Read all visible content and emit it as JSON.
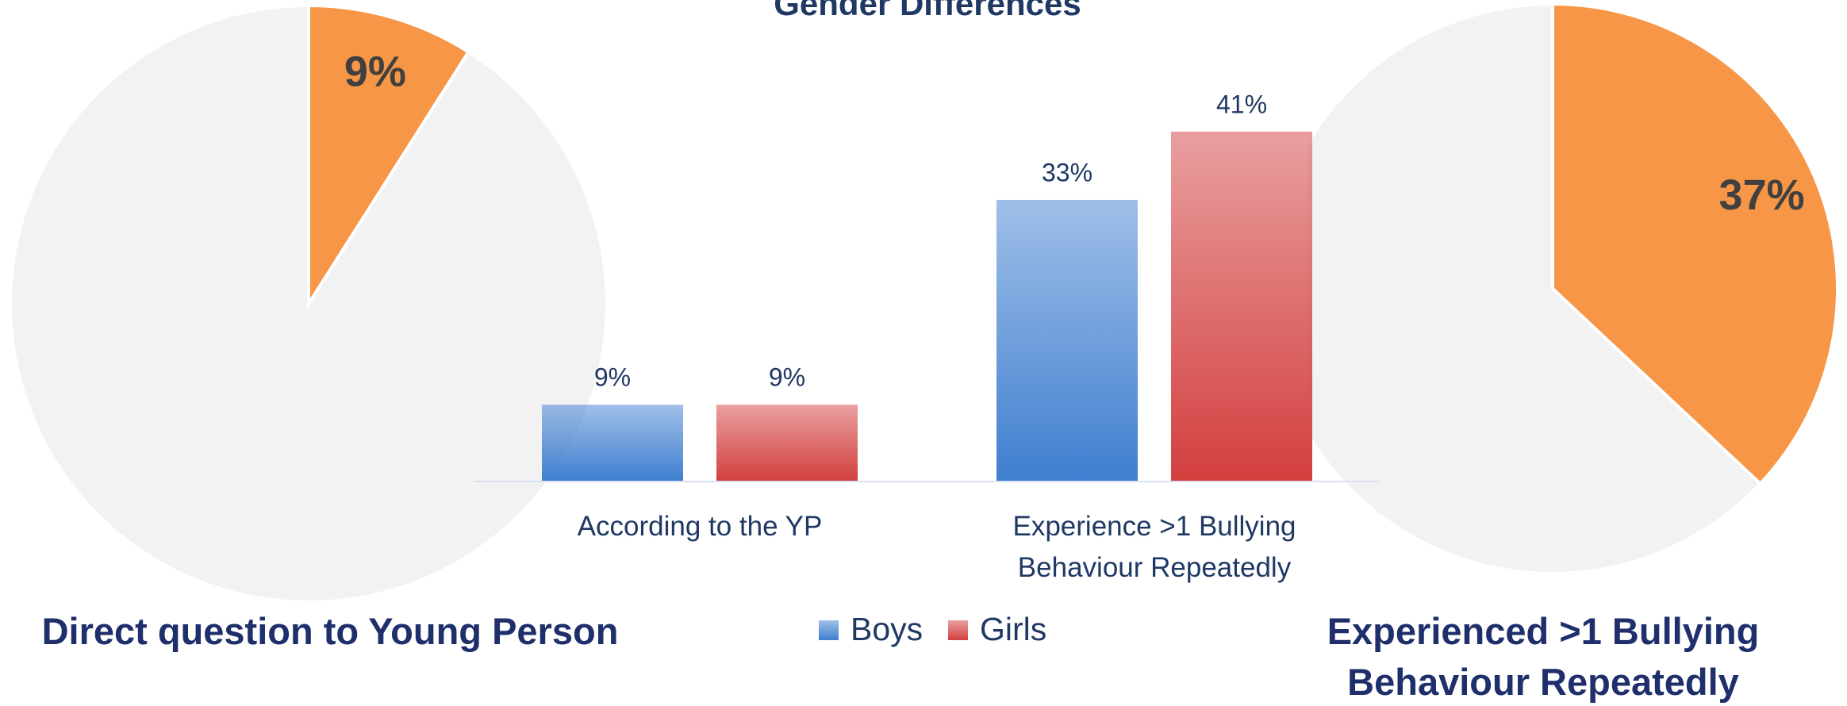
{
  "chart_data": [
    {
      "type": "pie",
      "caption": "Direct question to Young Person",
      "values": [
        9,
        91
      ],
      "value_labels": [
        "9%",
        null
      ],
      "colors": [
        "#f79646",
        "#f2f2f2"
      ]
    },
    {
      "type": "bar",
      "title": "Gender Differences",
      "categories": [
        "According to the YP",
        "Experience >1 Bullying Behaviour Repeatedly"
      ],
      "series": [
        {
          "name": "Boys",
          "color": "#3f7fd0",
          "values": [
            9,
            33
          ],
          "value_labels": [
            "9%",
            "33%"
          ]
        },
        {
          "name": "Girls",
          "color": "#d33f3f",
          "values": [
            9,
            41
          ],
          "value_labels": [
            "9%",
            "41%"
          ]
        }
      ],
      "ylim": [
        0,
        50
      ],
      "legend": "bottom"
    },
    {
      "type": "pie",
      "caption": "Experienced >1 Bullying Behaviour Repeatedly",
      "values": [
        37,
        63
      ],
      "value_labels": [
        "37%",
        null
      ],
      "colors": [
        "#f79646",
        "#f2f2f2"
      ]
    }
  ]
}
